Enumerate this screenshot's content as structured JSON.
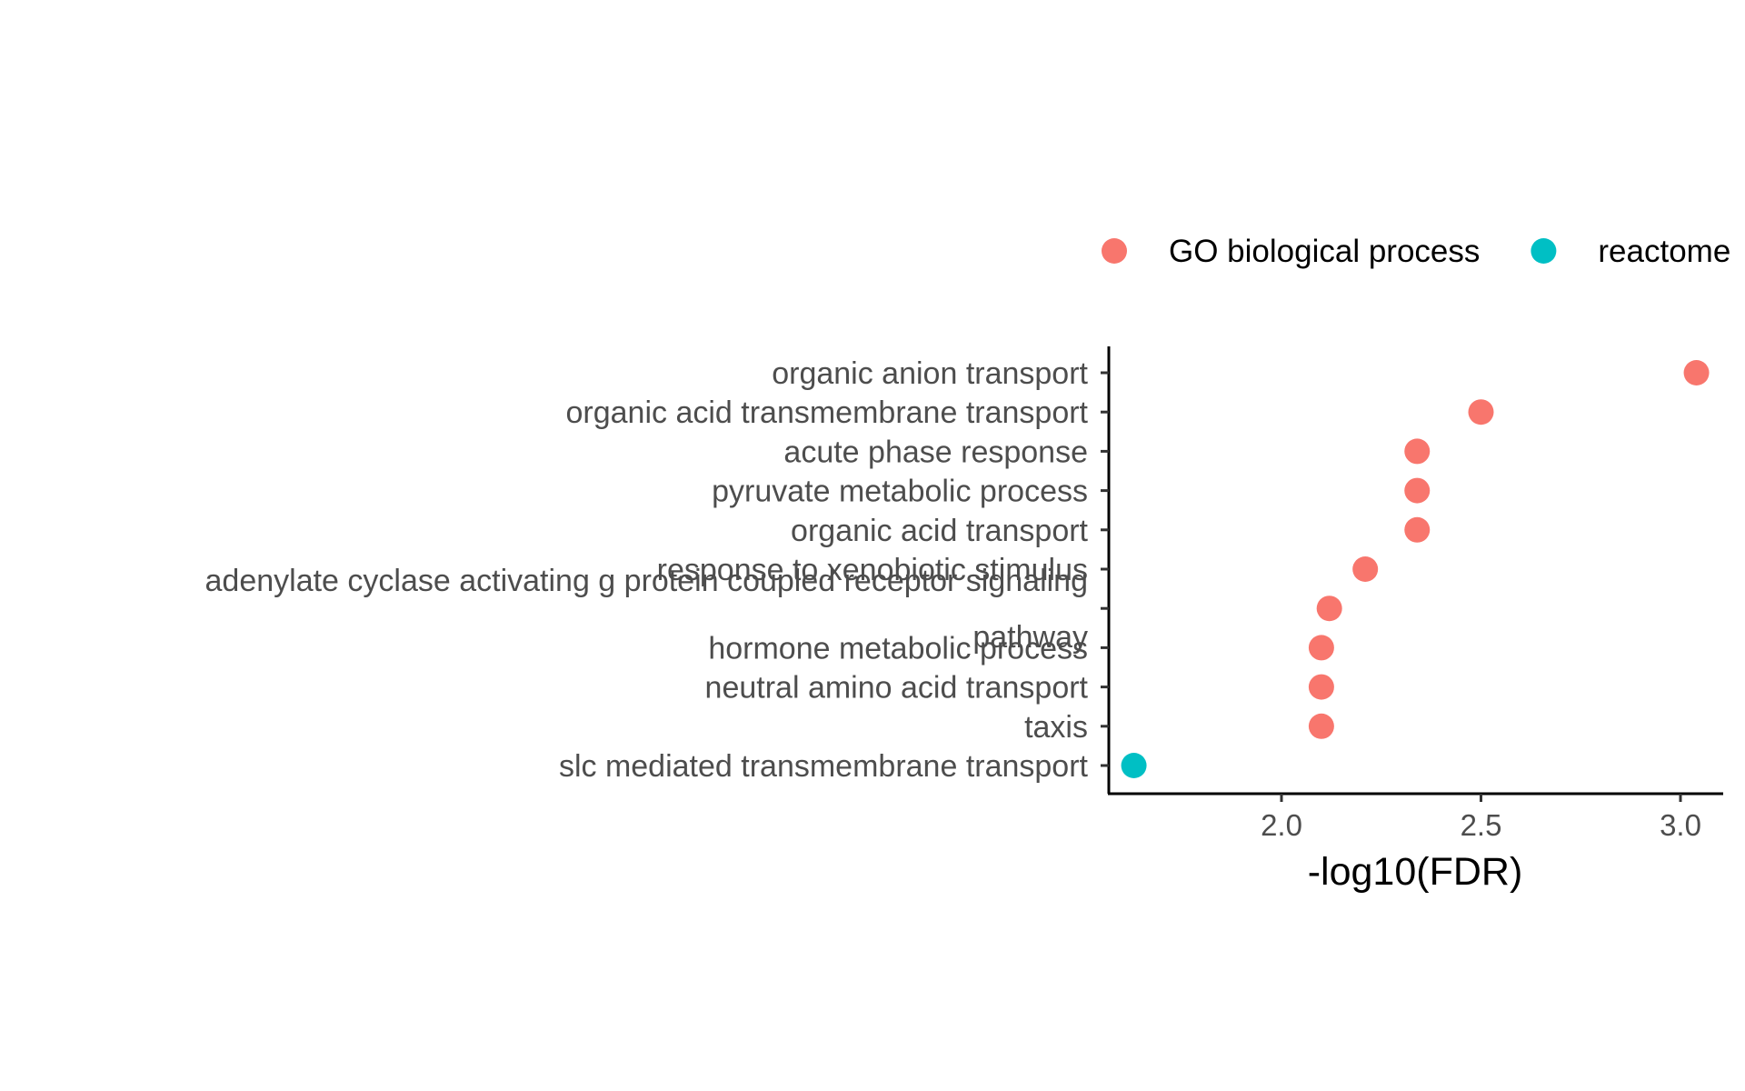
{
  "chart_data": {
    "type": "scatter",
    "xlabel": "-log10(FDR)",
    "ylabel": "",
    "xlim": [
      1.57,
      3.1
    ],
    "x_ticks": [
      2.0,
      2.5,
      3.0
    ],
    "x_tick_labels": [
      "2.0",
      "2.5",
      "3.0"
    ],
    "grid": false,
    "legend_position": "top",
    "categories": [
      "organic anion transport",
      "organic acid transmembrane transport",
      "acute phase response",
      "pyruvate metabolic process",
      "organic acid transport",
      "response to xenobiotic stimulus",
      "adenylate cyclase activating g protein coupled receptor signaling pathway",
      "hormone metabolic process",
      "neutral amino acid transport",
      "taxis",
      "slc mediated transmembrane transport"
    ],
    "category_label_lines": [
      [
        "organic anion transport"
      ],
      [
        "organic acid transmembrane transport"
      ],
      [
        "acute phase response"
      ],
      [
        "pyruvate metabolic process"
      ],
      [
        "organic acid transport"
      ],
      [
        "response to xenobiotic stimulus"
      ],
      [
        "adenylate cyclase activating g protein coupled receptor signaling ",
        "pathway"
      ],
      [
        "hormone metabolic process"
      ],
      [
        "neutral amino acid transport"
      ],
      [
        "taxis"
      ],
      [
        "slc mediated transmembrane transport"
      ]
    ],
    "series": [
      {
        "name": "GO biological process",
        "color": "#F8766D",
        "points": [
          {
            "category": "organic anion transport",
            "x": 3.04
          },
          {
            "category": "organic acid transmembrane transport",
            "x": 2.5
          },
          {
            "category": "acute phase response",
            "x": 2.34
          },
          {
            "category": "pyruvate metabolic process",
            "x": 2.34
          },
          {
            "category": "organic acid transport",
            "x": 2.34
          },
          {
            "category": "response to xenobiotic stimulus",
            "x": 2.21
          },
          {
            "category": "adenylate cyclase activating g protein coupled receptor signaling pathway",
            "x": 2.12
          },
          {
            "category": "hormone metabolic process",
            "x": 2.1
          },
          {
            "category": "neutral amino acid transport",
            "x": 2.1
          },
          {
            "category": "taxis",
            "x": 2.1
          }
        ]
      },
      {
        "name": "reactome",
        "color": "#00BFC4",
        "points": [
          {
            "category": "slc mediated transmembrane transport",
            "x": 1.63
          }
        ]
      }
    ]
  }
}
